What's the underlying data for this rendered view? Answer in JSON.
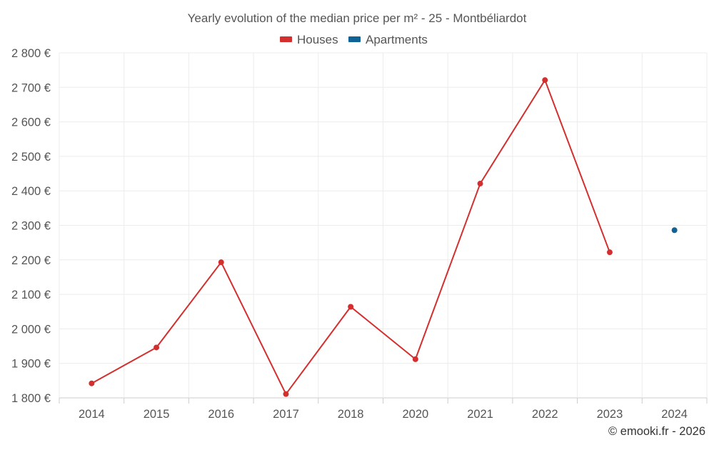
{
  "chart_data": {
    "type": "line",
    "title": "Yearly evolution of the median price per m² - 25 - Montbéliardot",
    "categories": [
      "2014",
      "2015",
      "2016",
      "2017",
      "2018",
      "2020",
      "2021",
      "2022",
      "2023",
      "2024"
    ],
    "ylim": [
      1800,
      2800
    ],
    "yticks": [
      1800,
      1900,
      2000,
      2100,
      2200,
      2300,
      2400,
      2500,
      2600,
      2700,
      2800
    ],
    "ytick_labels": [
      "1 800 €",
      "1 900 €",
      "2 000 €",
      "2 100 €",
      "2 200 €",
      "2 300 €",
      "2 400 €",
      "2 500 €",
      "2 600 €",
      "2 700 €",
      "2 800 €"
    ],
    "xlabel": "",
    "ylabel": "",
    "grid": true,
    "legend_position": "top-center",
    "series": [
      {
        "name": "Houses",
        "color": "#d32f2f",
        "values": [
          1842,
          1946,
          2193,
          1811,
          2064,
          1912,
          2421,
          2721,
          2222,
          null
        ]
      },
      {
        "name": "Apartments",
        "color": "#0f6396",
        "values": [
          null,
          null,
          null,
          null,
          null,
          null,
          null,
          null,
          null,
          2286
        ]
      }
    ]
  },
  "footer": "© emooki.fr - 2026"
}
